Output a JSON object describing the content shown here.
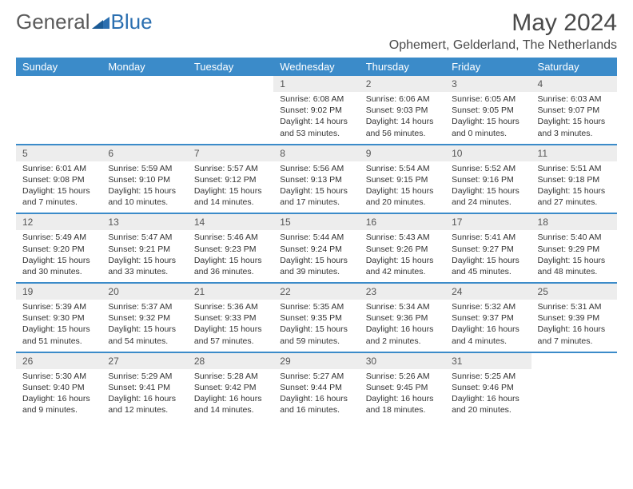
{
  "logo": {
    "text1": "General",
    "text2": "Blue"
  },
  "title": "May 2024",
  "location": "Ophemert, Gelderland, The Netherlands",
  "colors": {
    "header_bg": "#3b8bc9",
    "header_text": "#ffffff",
    "daynum_bg": "#ededed",
    "text": "#333333",
    "logo_gray": "#5a5a5a",
    "logo_blue": "#2b6fb0"
  },
  "day_names": [
    "Sunday",
    "Monday",
    "Tuesday",
    "Wednesday",
    "Thursday",
    "Friday",
    "Saturday"
  ],
  "weeks": [
    [
      null,
      null,
      null,
      {
        "n": "1",
        "sr": "6:08 AM",
        "ss": "9:02 PM",
        "dl": "14 hours and 53 minutes."
      },
      {
        "n": "2",
        "sr": "6:06 AM",
        "ss": "9:03 PM",
        "dl": "14 hours and 56 minutes."
      },
      {
        "n": "3",
        "sr": "6:05 AM",
        "ss": "9:05 PM",
        "dl": "15 hours and 0 minutes."
      },
      {
        "n": "4",
        "sr": "6:03 AM",
        "ss": "9:07 PM",
        "dl": "15 hours and 3 minutes."
      }
    ],
    [
      {
        "n": "5",
        "sr": "6:01 AM",
        "ss": "9:08 PM",
        "dl": "15 hours and 7 minutes."
      },
      {
        "n": "6",
        "sr": "5:59 AM",
        "ss": "9:10 PM",
        "dl": "15 hours and 10 minutes."
      },
      {
        "n": "7",
        "sr": "5:57 AM",
        "ss": "9:12 PM",
        "dl": "15 hours and 14 minutes."
      },
      {
        "n": "8",
        "sr": "5:56 AM",
        "ss": "9:13 PM",
        "dl": "15 hours and 17 minutes."
      },
      {
        "n": "9",
        "sr": "5:54 AM",
        "ss": "9:15 PM",
        "dl": "15 hours and 20 minutes."
      },
      {
        "n": "10",
        "sr": "5:52 AM",
        "ss": "9:16 PM",
        "dl": "15 hours and 24 minutes."
      },
      {
        "n": "11",
        "sr": "5:51 AM",
        "ss": "9:18 PM",
        "dl": "15 hours and 27 minutes."
      }
    ],
    [
      {
        "n": "12",
        "sr": "5:49 AM",
        "ss": "9:20 PM",
        "dl": "15 hours and 30 minutes."
      },
      {
        "n": "13",
        "sr": "5:47 AM",
        "ss": "9:21 PM",
        "dl": "15 hours and 33 minutes."
      },
      {
        "n": "14",
        "sr": "5:46 AM",
        "ss": "9:23 PM",
        "dl": "15 hours and 36 minutes."
      },
      {
        "n": "15",
        "sr": "5:44 AM",
        "ss": "9:24 PM",
        "dl": "15 hours and 39 minutes."
      },
      {
        "n": "16",
        "sr": "5:43 AM",
        "ss": "9:26 PM",
        "dl": "15 hours and 42 minutes."
      },
      {
        "n": "17",
        "sr": "5:41 AM",
        "ss": "9:27 PM",
        "dl": "15 hours and 45 minutes."
      },
      {
        "n": "18",
        "sr": "5:40 AM",
        "ss": "9:29 PM",
        "dl": "15 hours and 48 minutes."
      }
    ],
    [
      {
        "n": "19",
        "sr": "5:39 AM",
        "ss": "9:30 PM",
        "dl": "15 hours and 51 minutes."
      },
      {
        "n": "20",
        "sr": "5:37 AM",
        "ss": "9:32 PM",
        "dl": "15 hours and 54 minutes."
      },
      {
        "n": "21",
        "sr": "5:36 AM",
        "ss": "9:33 PM",
        "dl": "15 hours and 57 minutes."
      },
      {
        "n": "22",
        "sr": "5:35 AM",
        "ss": "9:35 PM",
        "dl": "15 hours and 59 minutes."
      },
      {
        "n": "23",
        "sr": "5:34 AM",
        "ss": "9:36 PM",
        "dl": "16 hours and 2 minutes."
      },
      {
        "n": "24",
        "sr": "5:32 AM",
        "ss": "9:37 PM",
        "dl": "16 hours and 4 minutes."
      },
      {
        "n": "25",
        "sr": "5:31 AM",
        "ss": "9:39 PM",
        "dl": "16 hours and 7 minutes."
      }
    ],
    [
      {
        "n": "26",
        "sr": "5:30 AM",
        "ss": "9:40 PM",
        "dl": "16 hours and 9 minutes."
      },
      {
        "n": "27",
        "sr": "5:29 AM",
        "ss": "9:41 PM",
        "dl": "16 hours and 12 minutes."
      },
      {
        "n": "28",
        "sr": "5:28 AM",
        "ss": "9:42 PM",
        "dl": "16 hours and 14 minutes."
      },
      {
        "n": "29",
        "sr": "5:27 AM",
        "ss": "9:44 PM",
        "dl": "16 hours and 16 minutes."
      },
      {
        "n": "30",
        "sr": "5:26 AM",
        "ss": "9:45 PM",
        "dl": "16 hours and 18 minutes."
      },
      {
        "n": "31",
        "sr": "5:25 AM",
        "ss": "9:46 PM",
        "dl": "16 hours and 20 minutes."
      },
      null
    ]
  ],
  "labels": {
    "sunrise": "Sunrise:",
    "sunset": "Sunset:",
    "daylight": "Daylight:"
  }
}
